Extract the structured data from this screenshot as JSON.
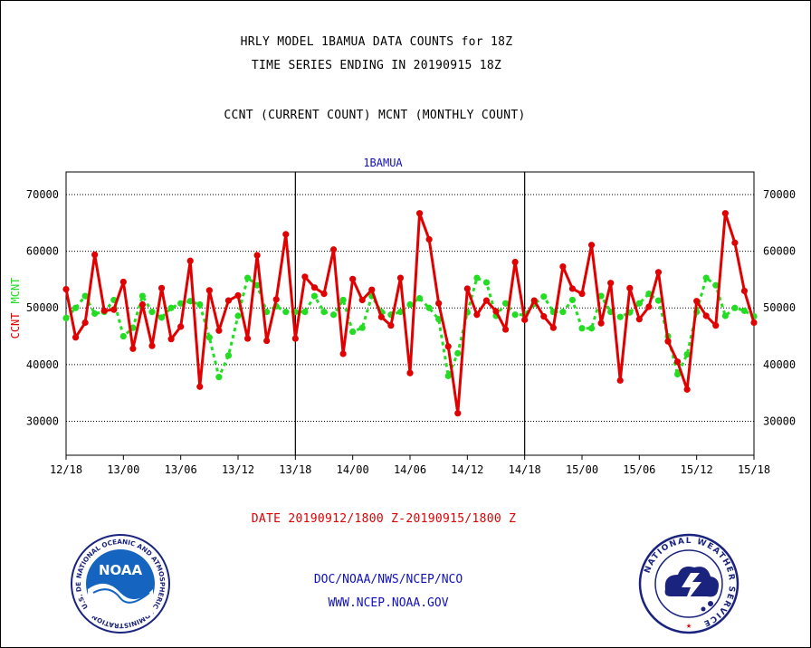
{
  "header": {
    "line1": "HRLY MODEL 1BAMUA DATA COUNTS for 18Z",
    "line2": "TIME SERIES ENDING IN 20190915 18Z",
    "line3": "CCNT (CURRENT COUNT) MCNT (MONTHLY COUNT)"
  },
  "footer": {
    "date_range": "DATE 20190912/1800 Z-20190915/1800 Z",
    "credit1": "DOC/NOAA/NWS/NCEP/NCO",
    "credit2": "WWW.NCEP.NOAA.GOV"
  },
  "logos": {
    "noaa_text": "NOAA",
    "noaa_ring": "NATIONAL OCEANIC AND ATMOSPHERIC ADMINISTRATION • U.S. DEPARTMENT OF COMMERCE",
    "nws_ring": "NATIONAL WEATHER SERVICE"
  },
  "colors": {
    "ccnt": "#e00000",
    "mcnt": "#22dd22",
    "plot_title": "#1010c0"
  },
  "chart_data": {
    "type": "line",
    "title": "1BAMUA",
    "ylabel_ccnt": "CCNT",
    "ylabel_mcnt": "MCNT",
    "ylim": [
      24000,
      74000
    ],
    "yticks": [
      30000,
      40000,
      50000,
      60000,
      70000
    ],
    "ytick_labels": [
      "30000",
      "40000",
      "50000",
      "60000",
      "70000"
    ],
    "xlim": [
      0,
      72
    ],
    "xticks": [
      0,
      6,
      12,
      18,
      24,
      30,
      36,
      42,
      48,
      54,
      60,
      66,
      72
    ],
    "xtick_labels": [
      "12/18",
      "13/00",
      "13/06",
      "13/12",
      "13/18",
      "14/00",
      "14/06",
      "14/12",
      "14/18",
      "15/00",
      "15/06",
      "15/12",
      "15/18"
    ],
    "day_boundaries": [
      24,
      48
    ],
    "grid": true,
    "series": [
      {
        "name": "CCNT",
        "values": [
          53300,
          44800,
          47400,
          59400,
          49500,
          49700,
          54600,
          42800,
          50600,
          43300,
          53500,
          44500,
          46700,
          58300,
          36100,
          53100,
          46000,
          51300,
          52200,
          44600,
          59300,
          44200,
          51500,
          63000,
          44600,
          55500,
          53600,
          52500,
          60300,
          41900,
          55100,
          51400,
          53200,
          48400,
          46900,
          55300,
          38500,
          66700,
          62100,
          50800,
          43200,
          31400,
          53400,
          48800,
          51300,
          49400,
          46200,
          58100,
          47900,
          51300,
          48500,
          46500,
          57300,
          53400,
          52500,
          61100,
          47300,
          54400,
          37200,
          53500,
          48000,
          50200,
          56300,
          44100,
          40500,
          35600,
          51200,
          48600,
          46900,
          66700,
          61500,
          53000,
          47400
        ]
      },
      {
        "name": "MCNT",
        "values": [
          48200,
          50000,
          52100,
          49000,
          49300,
          51400,
          45000,
          46500,
          52100,
          49300,
          48300,
          50000,
          50800,
          51200,
          50600,
          44800,
          37800,
          41600,
          48600,
          55300,
          54000,
          49300,
          50300,
          49300,
          49300,
          49300,
          52100,
          49300,
          48800,
          51400,
          45800,
          46500,
          52100,
          49300,
          48800,
          49300,
          50600,
          51700,
          50000,
          48000,
          38000,
          42000,
          49200,
          55300,
          54500,
          48600,
          50800,
          48800,
          48800,
          50700,
          52000,
          49300,
          49300,
          51400,
          46400,
          46400,
          52100,
          49300,
          48400,
          49200,
          50800,
          52500,
          51300,
          45000,
          38300,
          41800,
          49300,
          55300,
          54000,
          48600,
          50000,
          49500,
          48500
        ]
      }
    ]
  }
}
